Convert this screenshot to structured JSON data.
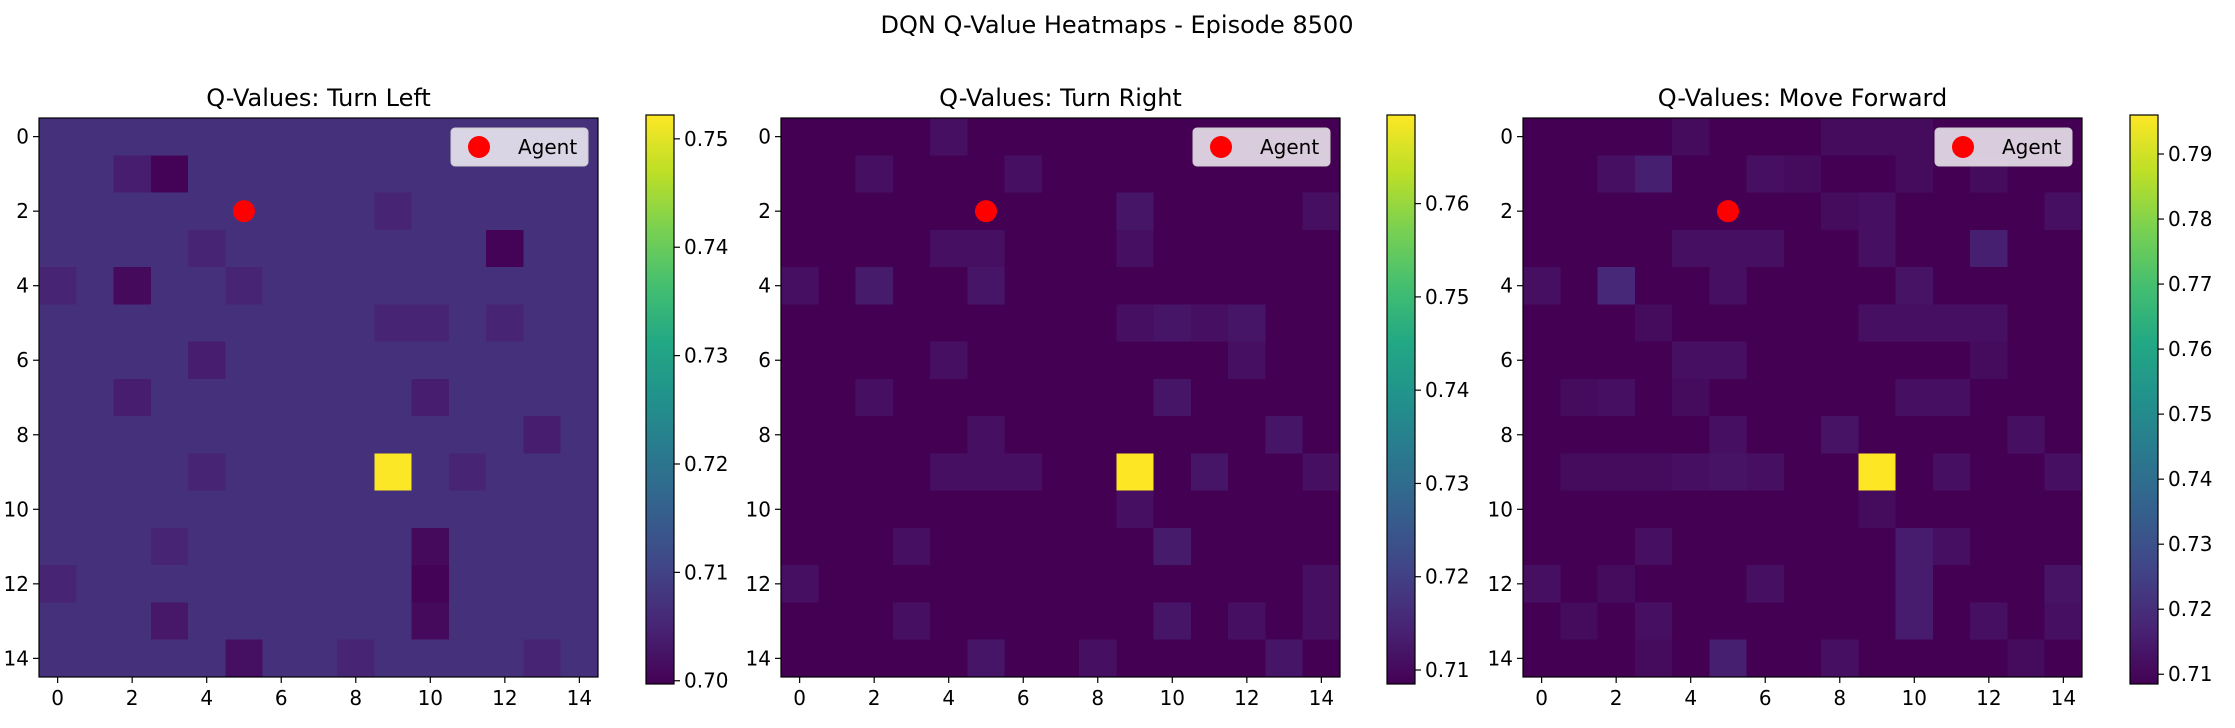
{
  "suptitle": "DQN Q-Value Heatmaps - Episode 8500",
  "colormap": "viridis",
  "colormap_stops": [
    "#440154",
    "#482475",
    "#414487",
    "#355f8d",
    "#2a788e",
    "#21918c",
    "#22a884",
    "#44bf70",
    "#7ad151",
    "#bddf26",
    "#fde725"
  ],
  "marker_color": "#ff0000",
  "chart_data": [
    {
      "type": "heatmap",
      "title": "Q-Values: Turn Left",
      "xlabel": "",
      "ylabel": "",
      "grid_size": 15,
      "xticks": [
        0,
        2,
        4,
        6,
        8,
        10,
        12,
        14
      ],
      "yticks": [
        0,
        2,
        4,
        6,
        8,
        10,
        12,
        14
      ],
      "vmin": 0.6997,
      "vmax": 0.7522,
      "colorbar_ticks": [
        0.7,
        0.71,
        0.72,
        0.73,
        0.74,
        0.75
      ],
      "colorbar_tick_labels": [
        "0.70",
        "0.71",
        "0.72",
        "0.73",
        "0.74",
        "0.75"
      ],
      "background_value": 0.707,
      "cells": [
        {
          "row": 1,
          "col": 3,
          "value": 0.7
        },
        {
          "row": 1,
          "col": 2,
          "value": 0.704
        },
        {
          "row": 3,
          "col": 12,
          "value": 0.7
        },
        {
          "row": 3,
          "col": 4,
          "value": 0.705
        },
        {
          "row": 2,
          "col": 9,
          "value": 0.705
        },
        {
          "row": 4,
          "col": 2,
          "value": 0.701
        },
        {
          "row": 4,
          "col": 0,
          "value": 0.705
        },
        {
          "row": 4,
          "col": 5,
          "value": 0.705
        },
        {
          "row": 5,
          "col": 9,
          "value": 0.705
        },
        {
          "row": 5,
          "col": 10,
          "value": 0.705
        },
        {
          "row": 5,
          "col": 12,
          "value": 0.705
        },
        {
          "row": 6,
          "col": 4,
          "value": 0.704
        },
        {
          "row": 7,
          "col": 2,
          "value": 0.704
        },
        {
          "row": 7,
          "col": 10,
          "value": 0.704
        },
        {
          "row": 8,
          "col": 13,
          "value": 0.704
        },
        {
          "row": 9,
          "col": 4,
          "value": 0.705
        },
        {
          "row": 9,
          "col": 11,
          "value": 0.705
        },
        {
          "row": 9,
          "col": 9,
          "value": 0.752
        },
        {
          "row": 11,
          "col": 3,
          "value": 0.705
        },
        {
          "row": 11,
          "col": 10,
          "value": 0.701
        },
        {
          "row": 12,
          "col": 0,
          "value": 0.705
        },
        {
          "row": 12,
          "col": 10,
          "value": 0.7
        },
        {
          "row": 13,
          "col": 3,
          "value": 0.703
        },
        {
          "row": 13,
          "col": 10,
          "value": 0.701
        },
        {
          "row": 14,
          "col": 5,
          "value": 0.702
        },
        {
          "row": 14,
          "col": 8,
          "value": 0.705
        },
        {
          "row": 14,
          "col": 13,
          "value": 0.705
        }
      ],
      "agent": {
        "x": 5,
        "y": 2
      },
      "legend": {
        "label": "Agent",
        "loc": "upper right"
      }
    },
    {
      "type": "heatmap",
      "title": "Q-Values: Turn Right",
      "xlabel": "",
      "ylabel": "",
      "grid_size": 15,
      "xticks": [
        0,
        2,
        4,
        6,
        8,
        10,
        12,
        14
      ],
      "yticks": [
        0,
        2,
        4,
        6,
        8,
        10,
        12,
        14
      ],
      "vmin": 0.7085,
      "vmax": 0.7695,
      "colorbar_ticks": [
        0.71,
        0.72,
        0.73,
        0.74,
        0.75,
        0.76
      ],
      "colorbar_tick_labels": [
        "0.71",
        "0.72",
        "0.73",
        "0.74",
        "0.75",
        "0.76"
      ],
      "background_value": 0.7085,
      "cells": [
        {
          "row": 0,
          "col": 4,
          "value": 0.711
        },
        {
          "row": 1,
          "col": 2,
          "value": 0.711
        },
        {
          "row": 1,
          "col": 6,
          "value": 0.711
        },
        {
          "row": 2,
          "col": 9,
          "value": 0.712
        },
        {
          "row": 2,
          "col": 14,
          "value": 0.711
        },
        {
          "row": 3,
          "col": 4,
          "value": 0.711
        },
        {
          "row": 3,
          "col": 5,
          "value": 0.711
        },
        {
          "row": 3,
          "col": 9,
          "value": 0.711
        },
        {
          "row": 4,
          "col": 0,
          "value": 0.711
        },
        {
          "row": 4,
          "col": 2,
          "value": 0.713
        },
        {
          "row": 4,
          "col": 5,
          "value": 0.712
        },
        {
          "row": 5,
          "col": 9,
          "value": 0.711
        },
        {
          "row": 5,
          "col": 10,
          "value": 0.712
        },
        {
          "row": 5,
          "col": 11,
          "value": 0.711
        },
        {
          "row": 5,
          "col": 12,
          "value": 0.712
        },
        {
          "row": 6,
          "col": 4,
          "value": 0.711
        },
        {
          "row": 6,
          "col": 12,
          "value": 0.711
        },
        {
          "row": 7,
          "col": 2,
          "value": 0.711
        },
        {
          "row": 7,
          "col": 10,
          "value": 0.712
        },
        {
          "row": 8,
          "col": 5,
          "value": 0.711
        },
        {
          "row": 8,
          "col": 13,
          "value": 0.712
        },
        {
          "row": 9,
          "col": 4,
          "value": 0.711
        },
        {
          "row": 9,
          "col": 5,
          "value": 0.711
        },
        {
          "row": 9,
          "col": 6,
          "value": 0.711
        },
        {
          "row": 9,
          "col": 11,
          "value": 0.712
        },
        {
          "row": 9,
          "col": 14,
          "value": 0.711
        },
        {
          "row": 9,
          "col": 9,
          "value": 0.7695
        },
        {
          "row": 10,
          "col": 9,
          "value": 0.711
        },
        {
          "row": 11,
          "col": 3,
          "value": 0.711
        },
        {
          "row": 11,
          "col": 10,
          "value": 0.713
        },
        {
          "row": 12,
          "col": 0,
          "value": 0.711
        },
        {
          "row": 12,
          "col": 14,
          "value": 0.711
        },
        {
          "row": 13,
          "col": 3,
          "value": 0.711
        },
        {
          "row": 13,
          "col": 10,
          "value": 0.712
        },
        {
          "row": 13,
          "col": 12,
          "value": 0.711
        },
        {
          "row": 13,
          "col": 14,
          "value": 0.711
        },
        {
          "row": 14,
          "col": 5,
          "value": 0.712
        },
        {
          "row": 14,
          "col": 8,
          "value": 0.711
        },
        {
          "row": 14,
          "col": 13,
          "value": 0.712
        }
      ],
      "agent": {
        "x": 5,
        "y": 2
      },
      "legend": {
        "label": "Agent",
        "loc": "upper right"
      }
    },
    {
      "type": "heatmap",
      "title": "Q-Values: Move Forward",
      "xlabel": "",
      "ylabel": "",
      "grid_size": 15,
      "xticks": [
        0,
        2,
        4,
        6,
        8,
        10,
        12,
        14
      ],
      "yticks": [
        0,
        2,
        4,
        6,
        8,
        10,
        12,
        14
      ],
      "vmin": 0.7085,
      "vmax": 0.796,
      "colorbar_ticks": [
        0.71,
        0.72,
        0.73,
        0.74,
        0.75,
        0.76,
        0.77,
        0.78,
        0.79
      ],
      "colorbar_tick_labels": [
        "0.71",
        "0.72",
        "0.73",
        "0.74",
        "0.75",
        "0.76",
        "0.77",
        "0.78",
        "0.79"
      ],
      "background_value": 0.7085,
      "cells": [
        {
          "row": 0,
          "col": 4,
          "value": 0.711
        },
        {
          "row": 0,
          "col": 8,
          "value": 0.711
        },
        {
          "row": 0,
          "col": 9,
          "value": 0.711
        },
        {
          "row": 0,
          "col": 10,
          "value": 0.711
        },
        {
          "row": 1,
          "col": 2,
          "value": 0.712
        },
        {
          "row": 1,
          "col": 3,
          "value": 0.716
        },
        {
          "row": 1,
          "col": 6,
          "value": 0.712
        },
        {
          "row": 1,
          "col": 7,
          "value": 0.711
        },
        {
          "row": 1,
          "col": 10,
          "value": 0.711
        },
        {
          "row": 1,
          "col": 12,
          "value": 0.711
        },
        {
          "row": 2,
          "col": 8,
          "value": 0.711
        },
        {
          "row": 2,
          "col": 9,
          "value": 0.712
        },
        {
          "row": 2,
          "col": 14,
          "value": 0.712
        },
        {
          "row": 3,
          "col": 4,
          "value": 0.712
        },
        {
          "row": 3,
          "col": 5,
          "value": 0.712
        },
        {
          "row": 3,
          "col": 6,
          "value": 0.712
        },
        {
          "row": 3,
          "col": 9,
          "value": 0.712
        },
        {
          "row": 3,
          "col": 12,
          "value": 0.716
        },
        {
          "row": 4,
          "col": 0,
          "value": 0.712
        },
        {
          "row": 4,
          "col": 2,
          "value": 0.718
        },
        {
          "row": 4,
          "col": 5,
          "value": 0.712
        },
        {
          "row": 4,
          "col": 10,
          "value": 0.713
        },
        {
          "row": 5,
          "col": 3,
          "value": 0.711
        },
        {
          "row": 5,
          "col": 9,
          "value": 0.712
        },
        {
          "row": 5,
          "col": 10,
          "value": 0.712
        },
        {
          "row": 5,
          "col": 11,
          "value": 0.712
        },
        {
          "row": 5,
          "col": 12,
          "value": 0.712
        },
        {
          "row": 6,
          "col": 4,
          "value": 0.712
        },
        {
          "row": 6,
          "col": 5,
          "value": 0.712
        },
        {
          "row": 6,
          "col": 12,
          "value": 0.711
        },
        {
          "row": 7,
          "col": 1,
          "value": 0.711
        },
        {
          "row": 7,
          "col": 2,
          "value": 0.712
        },
        {
          "row": 7,
          "col": 4,
          "value": 0.711
        },
        {
          "row": 7,
          "col": 10,
          "value": 0.712
        },
        {
          "row": 7,
          "col": 11,
          "value": 0.712
        },
        {
          "row": 8,
          "col": 5,
          "value": 0.712
        },
        {
          "row": 8,
          "col": 8,
          "value": 0.713
        },
        {
          "row": 8,
          "col": 13,
          "value": 0.712
        },
        {
          "row": 9,
          "col": 1,
          "value": 0.711
        },
        {
          "row": 9,
          "col": 2,
          "value": 0.711
        },
        {
          "row": 9,
          "col": 3,
          "value": 0.711
        },
        {
          "row": 9,
          "col": 4,
          "value": 0.712
        },
        {
          "row": 9,
          "col": 5,
          "value": 0.713
        },
        {
          "row": 9,
          "col": 6,
          "value": 0.712
        },
        {
          "row": 9,
          "col": 11,
          "value": 0.712
        },
        {
          "row": 9,
          "col": 14,
          "value": 0.712
        },
        {
          "row": 9,
          "col": 9,
          "value": 0.796
        },
        {
          "row": 10,
          "col": 9,
          "value": 0.711
        },
        {
          "row": 11,
          "col": 3,
          "value": 0.712
        },
        {
          "row": 11,
          "col": 10,
          "value": 0.715
        },
        {
          "row": 11,
          "col": 11,
          "value": 0.712
        },
        {
          "row": 12,
          "col": 0,
          "value": 0.712
        },
        {
          "row": 12,
          "col": 2,
          "value": 0.711
        },
        {
          "row": 12,
          "col": 6,
          "value": 0.712
        },
        {
          "row": 12,
          "col": 10,
          "value": 0.715
        },
        {
          "row": 12,
          "col": 14,
          "value": 0.713
        },
        {
          "row": 13,
          "col": 1,
          "value": 0.711
        },
        {
          "row": 13,
          "col": 3,
          "value": 0.712
        },
        {
          "row": 13,
          "col": 10,
          "value": 0.715
        },
        {
          "row": 13,
          "col": 12,
          "value": 0.712
        },
        {
          "row": 13,
          "col": 14,
          "value": 0.712
        },
        {
          "row": 14,
          "col": 3,
          "value": 0.711
        },
        {
          "row": 14,
          "col": 5,
          "value": 0.716
        },
        {
          "row": 14,
          "col": 8,
          "value": 0.712
        },
        {
          "row": 14,
          "col": 13,
          "value": 0.711
        }
      ],
      "agent": {
        "x": 5,
        "y": 2
      },
      "legend": {
        "label": "Agent",
        "loc": "upper right"
      }
    }
  ]
}
